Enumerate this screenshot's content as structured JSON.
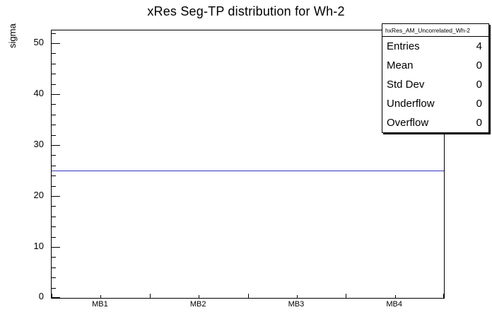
{
  "page": {
    "title": "xRes Seg-TP distribution for Wh-2"
  },
  "chart_data": {
    "type": "line",
    "title": "xRes Seg-TP distribution for Wh-2",
    "xlabel": "",
    "ylabel": "sigma",
    "categories": [
      "MB1",
      "MB2",
      "MB3",
      "MB4"
    ],
    "series": [
      {
        "name": "hxRes_AM_Uncorrelated_Wh-2",
        "values": [
          25,
          25,
          25,
          25
        ]
      }
    ],
    "line_y": 25,
    "line_color": "#3333bb",
    "ylim": [
      0,
      52.5
    ],
    "yticks": [
      0,
      10,
      20,
      30,
      40,
      50
    ],
    "y_minor_step": 2,
    "grid": false,
    "legend": "none"
  },
  "stats_box": {
    "header": "hxRes_AM_Uncorrelated_Wh-2",
    "rows": [
      {
        "label": "Entries",
        "value": "4"
      },
      {
        "label": "Mean",
        "value": "0"
      },
      {
        "label": "Std Dev",
        "value": "0"
      },
      {
        "label": "Underflow",
        "value": "0"
      },
      {
        "label": "Overflow",
        "value": "0"
      }
    ]
  }
}
